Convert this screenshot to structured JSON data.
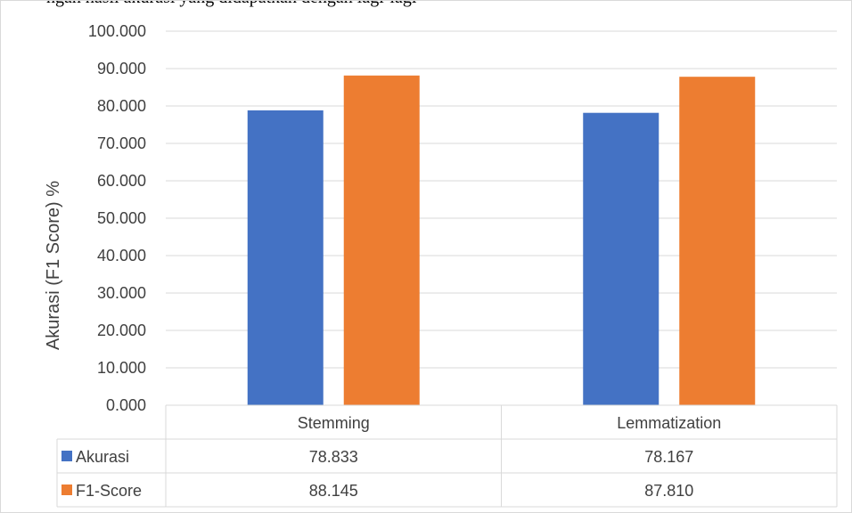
{
  "caption_fragment": "ngan hasil akurasi yang didapatkan dengan lagi-lagi",
  "chart_data": {
    "type": "bar",
    "categories": [
      "Stemming",
      "Lemmatization"
    ],
    "series": [
      {
        "name": "Akurasi",
        "values": [
          78.833,
          78.167
        ],
        "labels": [
          "78.833",
          "78.167"
        ],
        "color": "#4472C4"
      },
      {
        "name": "F1-Score",
        "values": [
          88.145,
          87.81
        ],
        "labels": [
          "88.145",
          "87.810"
        ],
        "color": "#ED7D31"
      }
    ],
    "ylabel": "Akurasi (F1 Score) %",
    "ylim": [
      0,
      100
    ],
    "yticks": [
      "0.000",
      "10.000",
      "20.000",
      "30.000",
      "40.000",
      "50.000",
      "60.000",
      "70.000",
      "80.000",
      "90.000",
      "100.000"
    ],
    "grid": true,
    "legend": "data-table"
  }
}
